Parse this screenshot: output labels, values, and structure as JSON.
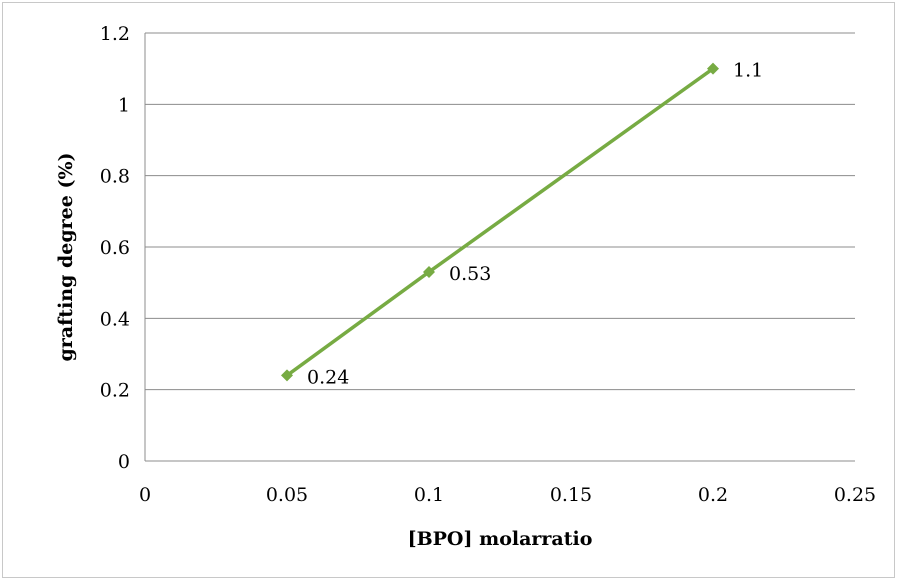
{
  "chart_data": {
    "type": "line",
    "title": "",
    "xlabel": "[BPO] molarratio",
    "ylabel": "grafting degree (%)",
    "xlim": [
      0,
      0.25
    ],
    "ylim": [
      0,
      1.2
    ],
    "x_ticks": [
      "0",
      "0.05",
      "0.1",
      "0.15",
      "0.2",
      "0.25"
    ],
    "y_ticks": [
      "0",
      "0.2",
      "0.4",
      "0.6",
      "0.8",
      "1",
      "1.2"
    ],
    "grid": "horizontal",
    "legend": "none",
    "series": [
      {
        "x": [
          0.05,
          0.1,
          0.2
        ],
        "values": [
          0.24,
          0.53,
          1.1
        ],
        "labels": [
          "0.24",
          "0.53",
          "1.1"
        ],
        "color": "#77ab43"
      }
    ]
  }
}
